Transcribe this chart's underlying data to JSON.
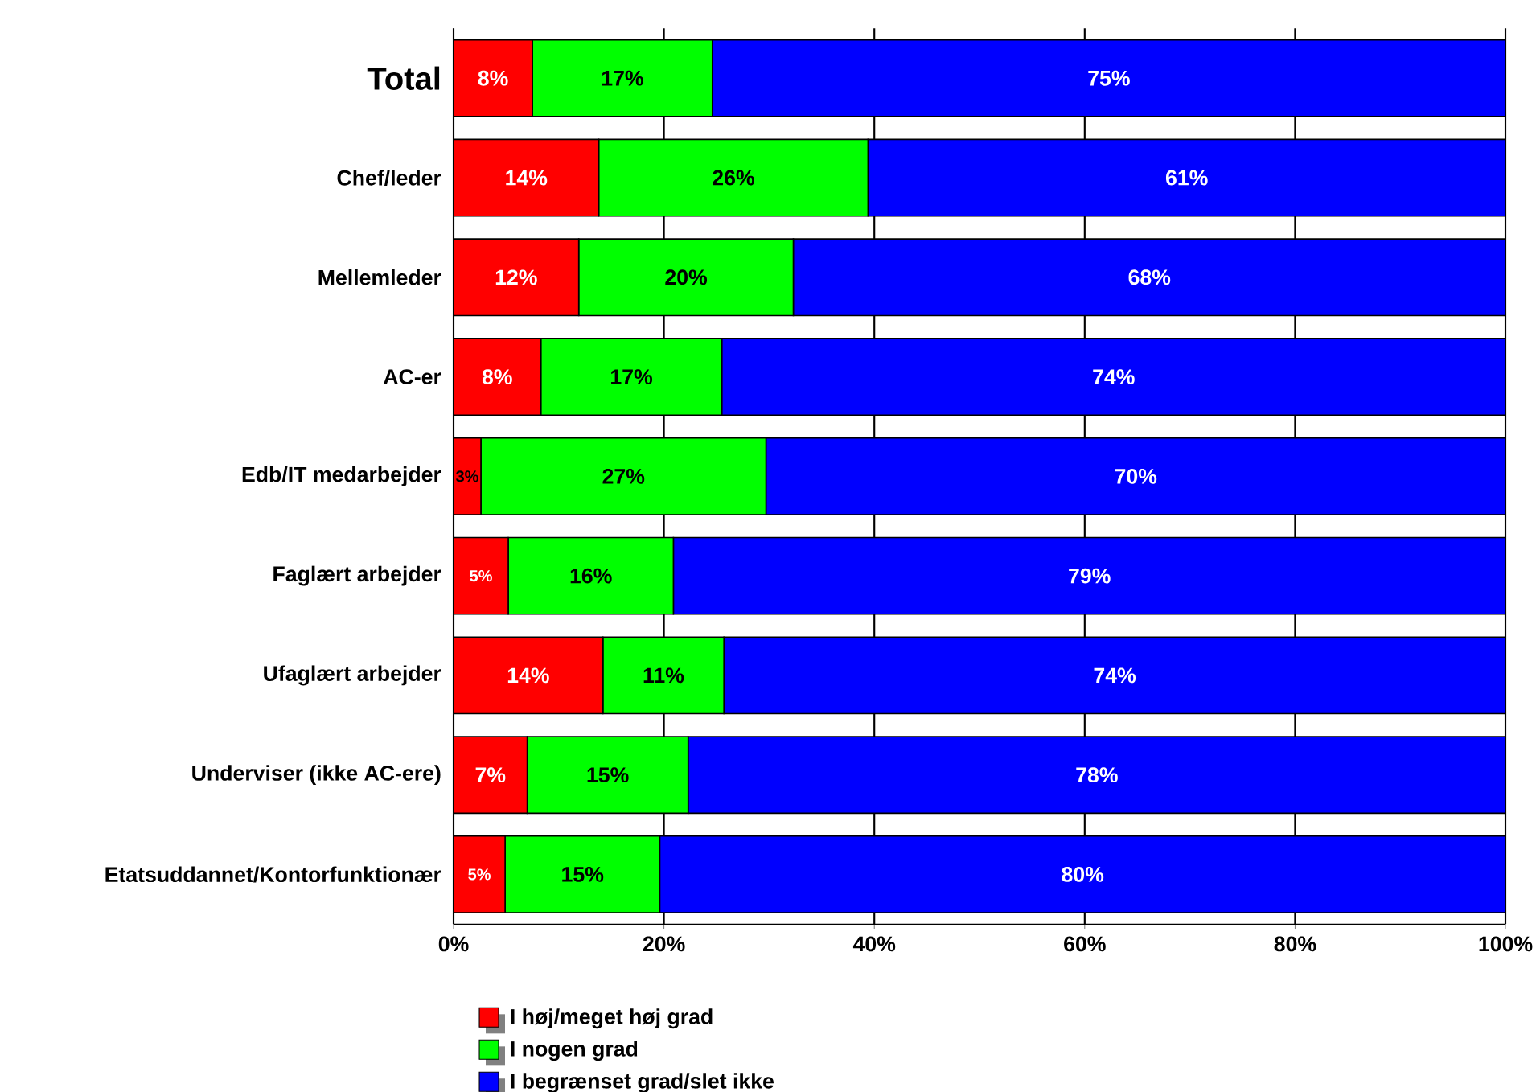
{
  "chart_data": {
    "type": "bar",
    "orientation": "horizontal",
    "stacked": true,
    "categories": [
      "Total",
      "Chef/leder",
      "Mellemleder",
      "AC-er",
      "Edb/IT medarbejder",
      "Faglært arbejder",
      "Ufaglært arbejder",
      "Underviser (ikke AC-ere)",
      "Etatsuddannet/Kontorfunktionær"
    ],
    "series": [
      {
        "name": "I høj/meget høj grad",
        "color": "#ff0000",
        "values": [
          7.5,
          13.8,
          11.9,
          8.3,
          2.6,
          5.2,
          14.2,
          7.0,
          4.9
        ],
        "value_labels": [
          "8%",
          "14%",
          "12%",
          "8%",
          "3%",
          "5%",
          "14%",
          "7%",
          "5%"
        ]
      },
      {
        "name": "I nogen grad",
        "color": "#00ff00",
        "values": [
          17.1,
          25.6,
          20.4,
          17.2,
          27.1,
          15.7,
          11.5,
          15.3,
          14.7
        ],
        "value_labels": [
          "17%",
          "26%",
          "20%",
          "17%",
          "27%",
          "16%",
          "11%",
          "15%",
          "15%"
        ]
      },
      {
        "name": "I begrænset grad/slet ikke",
        "color": "#0000ff",
        "values": [
          75.4,
          60.6,
          67.7,
          74.5,
          70.3,
          79.1,
          74.3,
          77.7,
          80.4
        ],
        "value_labels": [
          "75%",
          "61%",
          "68%",
          "74%",
          "70%",
          "79%",
          "74%",
          "78%",
          "80%"
        ]
      }
    ],
    "xlim": [
      0,
      100
    ],
    "xticks": [
      {
        "value": 0,
        "label": "0%"
      },
      {
        "value": 20,
        "label": "20%"
      },
      {
        "value": 40,
        "label": "40%"
      },
      {
        "value": 60,
        "label": "60%"
      },
      {
        "value": 80,
        "label": "80%"
      },
      {
        "value": 100,
        "label": "100%"
      }
    ],
    "grid": "x",
    "legend": "bottom"
  }
}
